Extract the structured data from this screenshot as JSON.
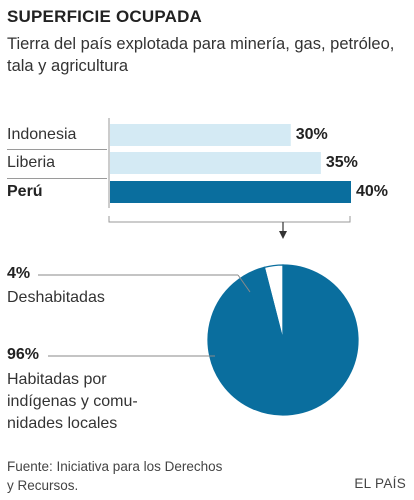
{
  "title": "SUPERFICIE OCUPADA",
  "subtitle": "Tierra del país explotada para minería, gas, petróleo, tala y agricultura",
  "source": "Fuente: Iniciativa para los Derechos y Recursos.",
  "brand": "EL PAÍS",
  "colors": {
    "light": "#d4eaf4",
    "dark": "#0a6e9e",
    "axis": "#9a9a9a"
  },
  "pie_labels": {
    "small_pct": "4%",
    "small_label": "Deshabitadas",
    "large_pct": "96%",
    "large_label_1": "Habitadas por",
    "large_label_2": "indígenas y comu-",
    "large_label_3": "nidades locales"
  },
  "chart_data": [
    {
      "type": "bar",
      "orientation": "horizontal",
      "categories": [
        "Indonesia",
        "Liberia",
        "Perú"
      ],
      "values": [
        30,
        35,
        40
      ],
      "value_labels": [
        "30%",
        "35%",
        "40%"
      ],
      "highlight": "Perú",
      "xlim": [
        0,
        40
      ]
    },
    {
      "type": "pie",
      "labels": [
        "Deshabitadas",
        "Habitadas por indígenas y comunidades locales"
      ],
      "values": [
        4,
        96
      ]
    }
  ]
}
